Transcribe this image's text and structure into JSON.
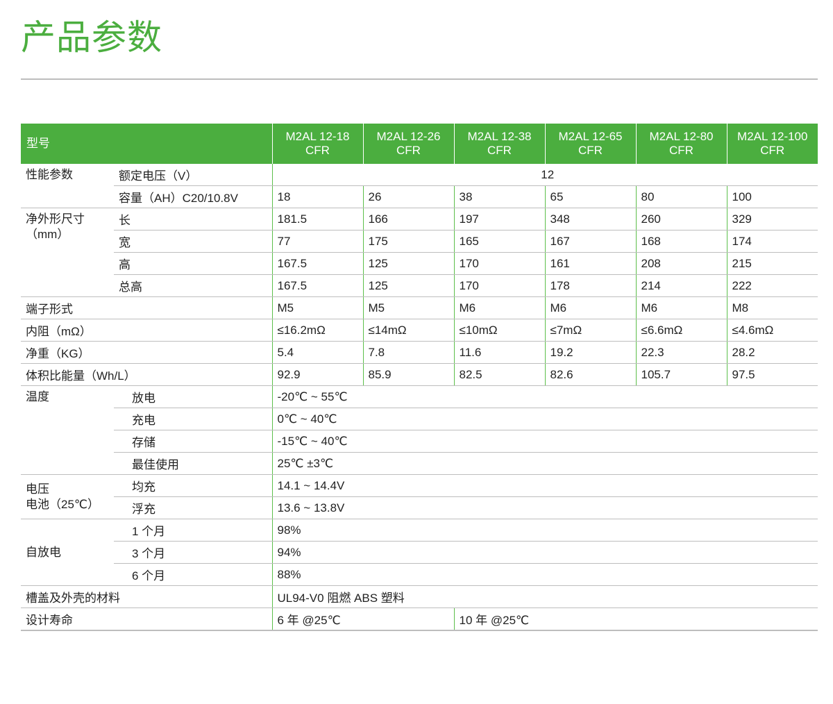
{
  "title": "产品参数",
  "header": {
    "label": "型号",
    "models": [
      "M2AL 12-18\nCFR",
      "M2AL 12-26\nCFR",
      "M2AL 12-38\nCFR",
      "M2AL 12-65\nCFR",
      "M2AL 12-80\nCFR",
      "M2AL 12-100\nCFR"
    ]
  },
  "perf": {
    "group": "性能参数",
    "voltage_label": "额定电压（V）",
    "voltage": "12",
    "capacity_label": "容量（AH）C20/10.8V",
    "capacity": [
      "18",
      "26",
      "38",
      "65",
      "80",
      "100"
    ]
  },
  "dims": {
    "group": "净外形尺寸\n（mm）",
    "rows": [
      {
        "label": "长",
        "values": [
          "181.5",
          "166",
          "197",
          "348",
          "260",
          "329"
        ]
      },
      {
        "label": "宽",
        "values": [
          "77",
          "175",
          "165",
          "167",
          "168",
          "174"
        ]
      },
      {
        "label": "高",
        "values": [
          "167.5",
          "125",
          "170",
          "161",
          "208",
          "215"
        ]
      },
      {
        "label": "总高",
        "values": [
          "167.5",
          "125",
          "170",
          "178",
          "214",
          "222"
        ]
      }
    ]
  },
  "specs": [
    {
      "label": "端子形式",
      "values": [
        "M5",
        "M5",
        "M6",
        "M6",
        "M6",
        "M8"
      ]
    },
    {
      "label": "内阻（mΩ）",
      "values": [
        "≤16.2mΩ",
        "≤14mΩ",
        "≤10mΩ",
        "≤7mΩ",
        "≤6.6mΩ",
        "≤4.6mΩ"
      ]
    },
    {
      "label": "净重（KG）",
      "values": [
        "5.4",
        "7.8",
        "11.6",
        "19.2",
        "22.3",
        "28.2"
      ]
    },
    {
      "label": "体积比能量（Wh/L）",
      "values": [
        "92.9",
        "85.9",
        "82.5",
        "82.6",
        "105.7",
        "97.5"
      ]
    }
  ],
  "temp": {
    "group": "温度",
    "rows": [
      {
        "label": "放电",
        "value": "-20℃ ~ 55℃"
      },
      {
        "label": "充电",
        "value": "0℃ ~ 40℃"
      },
      {
        "label": "存储",
        "value": "-15℃ ~ 40℃"
      },
      {
        "label": "最佳使用",
        "value": "25℃ ±3℃"
      }
    ]
  },
  "charge": {
    "group": "电压\n电池（25℃）",
    "rows": [
      {
        "label": "均充",
        "value": "14.1 ~ 14.4V"
      },
      {
        "label": "浮充",
        "value": "13.6 ~ 13.8V"
      }
    ]
  },
  "selfdis": {
    "group": "自放电",
    "rows": [
      {
        "label": "1 个月",
        "value": "98%"
      },
      {
        "label": "3 个月",
        "value": "94%"
      },
      {
        "label": "6 个月",
        "value": "88%"
      }
    ]
  },
  "material": {
    "label": "槽盖及外壳的材料",
    "value": "UL94-V0 阻燃 ABS 塑料"
  },
  "life": {
    "label": "设计寿命",
    "values": [
      "6 年 @25℃",
      "10 年 @25℃"
    ]
  }
}
